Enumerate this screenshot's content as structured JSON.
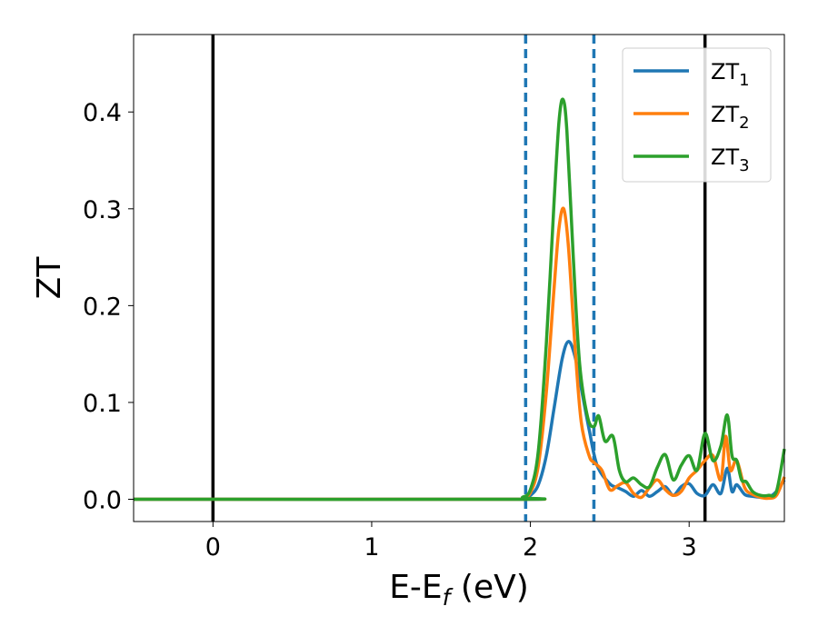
{
  "chart_data": {
    "type": "line",
    "xlabel": {
      "main": "E-E",
      "sub": "f",
      "suffix": " (eV)"
    },
    "ylabel": "ZT",
    "xlim": [
      -0.5,
      3.6
    ],
    "ylim": [
      -0.023,
      0.48
    ],
    "xticks": [
      0,
      1,
      2,
      3
    ],
    "xtick_labels": [
      "0",
      "1",
      "2",
      "3"
    ],
    "yticks": [
      0.0,
      0.1,
      0.2,
      0.3,
      0.4
    ],
    "ytick_labels": [
      "0.0",
      "0.1",
      "0.2",
      "0.3",
      "0.4"
    ],
    "grid": false,
    "legend_position": "top-right",
    "vlines": [
      {
        "x": 0.0,
        "style": "solid",
        "color": "#000000"
      },
      {
        "x": 3.1,
        "style": "solid",
        "color": "#000000"
      },
      {
        "x": 1.97,
        "style": "dashed",
        "color": "#1f77b4"
      },
      {
        "x": 2.4,
        "style": "dashed",
        "color": "#1f77b4"
      }
    ],
    "series": [
      {
        "name": "ZT",
        "name_sub": "1",
        "color": "#1f77b4",
        "x": [
          -0.5,
          1.9,
          1.95,
          2.0,
          2.05,
          2.1,
          2.15,
          2.2,
          2.24,
          2.28,
          2.32,
          2.37,
          2.42,
          2.5,
          2.55,
          2.6,
          2.65,
          2.7,
          2.75,
          2.8,
          2.85,
          2.9,
          2.95,
          3.0,
          3.05,
          3.1,
          3.15,
          3.2,
          3.24,
          3.27,
          3.3,
          3.35,
          3.4,
          3.45,
          3.5,
          3.55,
          3.6
        ],
        "y": [
          0.0,
          0.0,
          0.001,
          0.004,
          0.015,
          0.045,
          0.095,
          0.145,
          0.163,
          0.148,
          0.115,
          0.072,
          0.035,
          0.016,
          0.012,
          0.008,
          0.003,
          0.009,
          0.003,
          0.008,
          0.013,
          0.004,
          0.013,
          0.016,
          0.006,
          0.004,
          0.015,
          0.006,
          0.032,
          0.008,
          0.015,
          0.005,
          0.003,
          0.002,
          0.002,
          0.008,
          0.02
        ]
      },
      {
        "name": "ZT",
        "name_sub": "2",
        "color": "#ff7f0e",
        "x": [
          -0.5,
          1.9,
          1.95,
          2.0,
          2.05,
          2.1,
          2.15,
          2.18,
          2.21,
          2.24,
          2.28,
          2.32,
          2.37,
          2.4,
          2.45,
          2.5,
          2.55,
          2.6,
          2.65,
          2.7,
          2.75,
          2.8,
          2.85,
          2.9,
          2.95,
          3.0,
          3.05,
          3.1,
          3.15,
          3.2,
          3.23,
          3.26,
          3.3,
          3.35,
          3.4,
          3.45,
          3.5,
          3.55,
          3.6
        ],
        "y": [
          0.0,
          0.0,
          0.001,
          0.007,
          0.035,
          0.11,
          0.22,
          0.28,
          0.3,
          0.26,
          0.16,
          0.08,
          0.045,
          0.038,
          0.03,
          0.01,
          0.014,
          0.017,
          0.006,
          0.002,
          0.012,
          0.02,
          0.01,
          0.004,
          0.008,
          0.022,
          0.03,
          0.04,
          0.045,
          0.02,
          0.065,
          0.03,
          0.04,
          0.012,
          0.005,
          0.002,
          0.001,
          0.004,
          0.023
        ]
      },
      {
        "name": "ZT",
        "name_sub": "3",
        "color": "#2ca02c",
        "x": [
          -0.5,
          1.9,
          1.95,
          2.0,
          2.05,
          2.1,
          2.15,
          2.18,
          2.205,
          2.23,
          2.27,
          2.31,
          2.36,
          2.4,
          2.43,
          2.47,
          2.52,
          2.56,
          2.6,
          2.65,
          2.7,
          2.75,
          2.8,
          2.85,
          2.9,
          2.95,
          3.0,
          3.05,
          3.1,
          3.15,
          3.2,
          3.24,
          3.27,
          3.3,
          3.33,
          3.36,
          3.4,
          3.45,
          3.5,
          3.55,
          3.6
        ],
        "y": [
          0.0,
          0.0,
          0.002,
          0.01,
          0.05,
          0.16,
          0.31,
          0.39,
          0.413,
          0.38,
          0.25,
          0.14,
          0.085,
          0.075,
          0.086,
          0.06,
          0.065,
          0.03,
          0.018,
          0.022,
          0.015,
          0.013,
          0.033,
          0.046,
          0.02,
          0.035,
          0.045,
          0.03,
          0.068,
          0.04,
          0.055,
          0.087,
          0.045,
          0.04,
          0.02,
          0.018,
          0.008,
          0.004,
          0.004,
          0.008,
          0.052
        ]
      }
    ]
  }
}
